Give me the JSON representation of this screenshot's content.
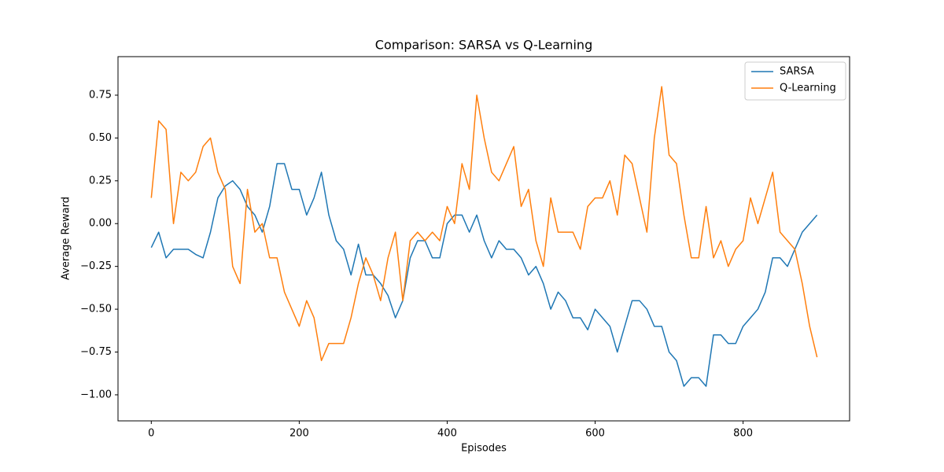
{
  "chart_data": {
    "type": "line",
    "title": "Comparison: SARSA vs Q-Learning",
    "x_label": "Episodes",
    "y_label": "Average Reward",
    "x": [
      0,
      10,
      20,
      30,
      40,
      50,
      60,
      70,
      80,
      90,
      100,
      110,
      120,
      130,
      140,
      150,
      160,
      170,
      180,
      190,
      200,
      210,
      220,
      230,
      240,
      250,
      260,
      270,
      280,
      290,
      300,
      310,
      320,
      330,
      340,
      350,
      360,
      370,
      380,
      390,
      400,
      410,
      420,
      430,
      440,
      450,
      460,
      470,
      480,
      490,
      500,
      510,
      520,
      530,
      540,
      550,
      560,
      570,
      580,
      590,
      600,
      610,
      620,
      630,
      640,
      650,
      660,
      670,
      680,
      690,
      700,
      710,
      720,
      730,
      740,
      750,
      760,
      770,
      780,
      790,
      800,
      810,
      820,
      830,
      840,
      850,
      860,
      870,
      880,
      890,
      900
    ],
    "series": [
      {
        "name": "SARSA",
        "color": "#1f77b4",
        "values": [
          -0.14,
          -0.05,
          -0.2,
          -0.15,
          -0.15,
          -0.15,
          -0.18,
          -0.2,
          -0.05,
          0.15,
          0.22,
          0.25,
          0.2,
          0.1,
          0.05,
          -0.05,
          0.1,
          0.35,
          0.35,
          0.2,
          0.2,
          0.05,
          0.15,
          0.3,
          0.05,
          -0.1,
          -0.15,
          -0.3,
          -0.12,
          -0.3,
          -0.3,
          -0.35,
          -0.42,
          -0.55,
          -0.45,
          -0.2,
          -0.1,
          -0.1,
          -0.2,
          -0.2,
          0.0,
          0.05,
          0.05,
          -0.05,
          0.05,
          -0.1,
          -0.2,
          -0.1,
          -0.15,
          -0.15,
          -0.2,
          -0.3,
          -0.25,
          -0.35,
          -0.5,
          -0.4,
          -0.45,
          -0.55,
          -0.55,
          -0.62,
          -0.5,
          -0.55,
          -0.6,
          -0.75,
          -0.6,
          -0.45,
          -0.45,
          -0.5,
          -0.6,
          -0.6,
          -0.75,
          -0.8,
          -0.95,
          -0.9,
          -0.9,
          -0.95,
          -0.65,
          -0.65,
          -0.7,
          -0.7,
          -0.6,
          -0.55,
          -0.5,
          -0.4,
          -0.2,
          -0.2,
          -0.25,
          -0.15,
          -0.05,
          0.0,
          0.05
        ]
      },
      {
        "name": "Q-Learning",
        "color": "#ff7f0e",
        "values": [
          0.15,
          0.6,
          0.55,
          0.0,
          0.3,
          0.25,
          0.3,
          0.45,
          0.5,
          0.3,
          0.2,
          -0.25,
          -0.35,
          0.2,
          -0.05,
          0.0,
          -0.2,
          -0.2,
          -0.4,
          -0.5,
          -0.6,
          -0.45,
          -0.55,
          -0.8,
          -0.7,
          -0.7,
          -0.7,
          -0.55,
          -0.35,
          -0.2,
          -0.3,
          -0.45,
          -0.2,
          -0.05,
          -0.45,
          -0.1,
          -0.05,
          -0.1,
          -0.05,
          -0.1,
          0.1,
          0.0,
          0.35,
          0.2,
          0.75,
          0.5,
          0.3,
          0.25,
          0.35,
          0.45,
          0.1,
          0.2,
          -0.1,
          -0.25,
          0.15,
          -0.05,
          -0.05,
          -0.05,
          -0.15,
          0.1,
          0.15,
          0.15,
          0.25,
          0.05,
          0.4,
          0.35,
          0.15,
          -0.05,
          0.5,
          0.8,
          0.4,
          0.35,
          0.05,
          -0.2,
          -0.2,
          0.1,
          -0.2,
          -0.1,
          -0.25,
          -0.15,
          -0.1,
          0.15,
          0.0,
          0.15,
          0.3,
          -0.05,
          -0.1,
          -0.15,
          -0.35,
          -0.6,
          -0.78
        ]
      }
    ],
    "xlim": [
      -45,
      944
    ],
    "xticks": [
      0,
      200,
      400,
      600,
      800
    ],
    "ylim": [
      -1.152,
      0.975
    ],
    "yticks": [
      {
        "value": -1.0,
        "label": "−1.00"
      },
      {
        "value": -0.75,
        "label": "−0.75"
      },
      {
        "value": -0.5,
        "label": "−0.50"
      },
      {
        "value": -0.25,
        "label": "−0.25"
      },
      {
        "value": 0,
        "label": "0.00"
      },
      0.25,
      {
        "value": 0.5,
        "label": "0.50"
      },
      0.75
    ],
    "grid": false,
    "legend": "upper right"
  }
}
